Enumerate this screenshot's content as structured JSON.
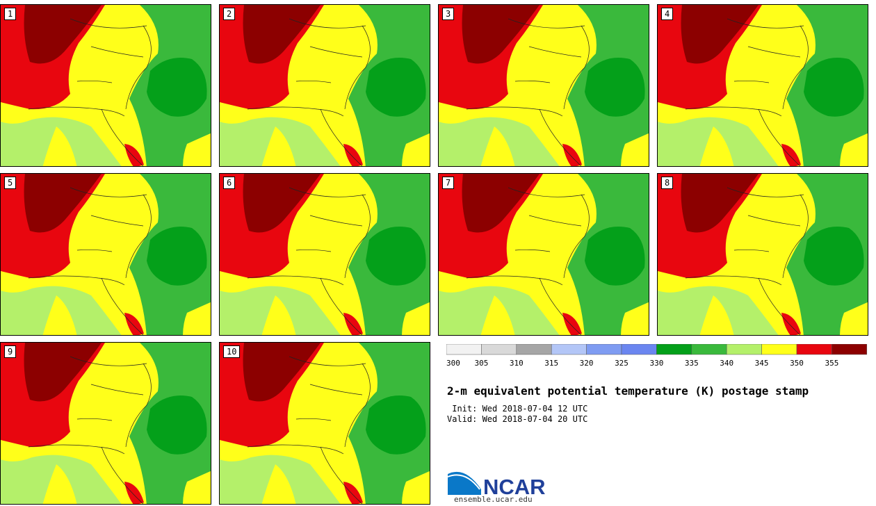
{
  "panels": [
    {
      "label": "1"
    },
    {
      "label": "2"
    },
    {
      "label": "3"
    },
    {
      "label": "4"
    },
    {
      "label": "5"
    },
    {
      "label": "6"
    },
    {
      "label": "7"
    },
    {
      "label": "8"
    },
    {
      "label": "9"
    },
    {
      "label": "10"
    }
  ],
  "colorbar": {
    "colors": [
      "#f2f2f2",
      "#d9d9d9",
      "#a6a6a6",
      "#b3c6f7",
      "#7f9cf2",
      "#6b86f0",
      "#04a01a",
      "#3ab93c",
      "#b4f06a",
      "#ffff1a",
      "#e8060f",
      "#8c0000"
    ],
    "ticks": [
      "300",
      "305",
      "310",
      "315",
      "320",
      "325",
      "330",
      "335",
      "340",
      "345",
      "350",
      "355"
    ]
  },
  "title": "2-m equivalent potential temperature (K) postage stamp",
  "init": " Init: Wed 2018-07-04 12 UTC",
  "valid": "Valid: Wed 2018-07-04 20 UTC",
  "logo": {
    "text": "NCAR",
    "url": "ensemble.ucar.edu"
  }
}
